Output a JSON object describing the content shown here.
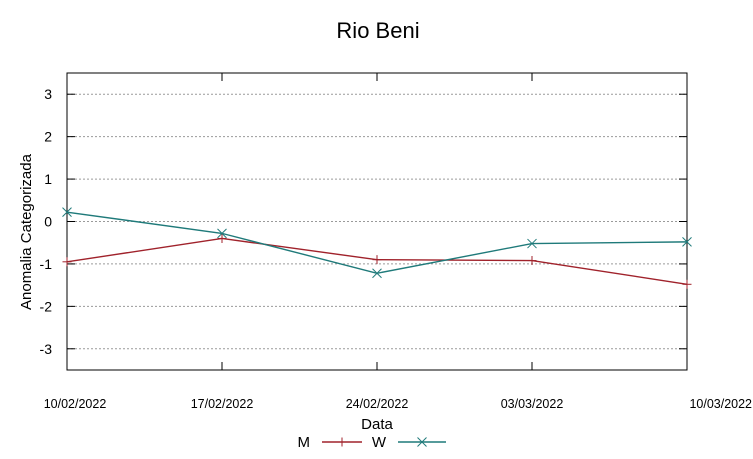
{
  "chart_data": {
    "type": "line",
    "title": "Rio Beni",
    "xlabel": "Data",
    "ylabel": "Anomalia Categorizada",
    "categories": [
      "10/02/2022",
      "17/02/2022",
      "24/02/2022",
      "03/03/2022",
      "10/03/2022"
    ],
    "ylim": [
      -3.5,
      3.5
    ],
    "yticks": [
      "3",
      "2",
      "1",
      "0",
      "-1",
      "-2",
      "-3"
    ],
    "ytick_values": [
      3,
      2,
      1,
      0,
      -1,
      -2,
      -3
    ],
    "grid": true,
    "legend_position": "bottom",
    "series": [
      {
        "name": "M",
        "values": [
          -0.95,
          -0.4,
          -0.9,
          -0.92,
          -1.48
        ],
        "color": "#a0222b",
        "marker": "plus"
      },
      {
        "name": "W",
        "values": [
          0.22,
          -0.28,
          -1.22,
          -0.52,
          -0.48
        ],
        "color": "#1f7a7a",
        "marker": "cross"
      }
    ]
  }
}
